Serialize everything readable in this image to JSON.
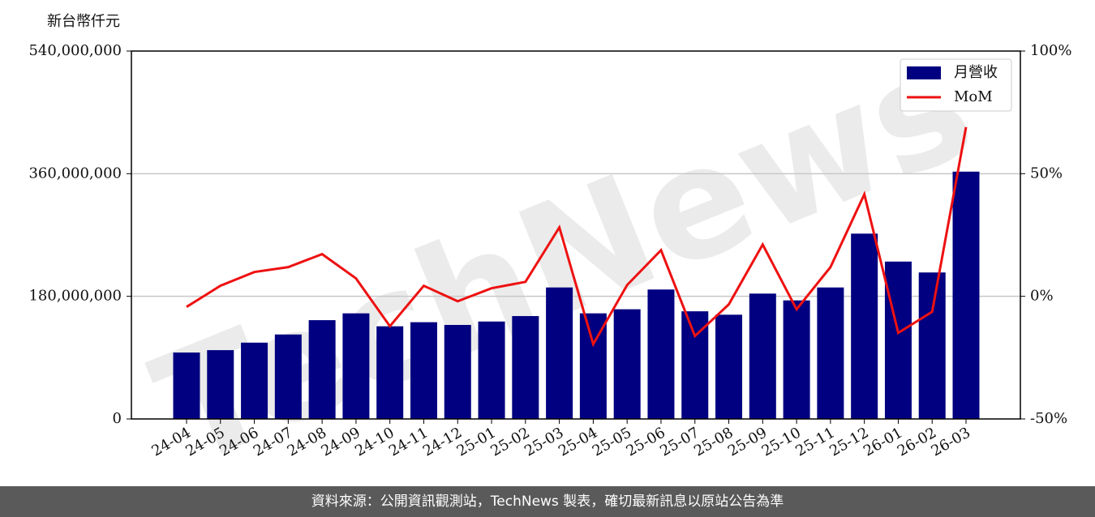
{
  "chart_data": {
    "type": "bar-line",
    "y_label": "新台幣仟元",
    "watermark": "TechNews",
    "categories": [
      "24-04",
      "24-05",
      "24-06",
      "24-07",
      "24-08",
      "24-09",
      "24-10",
      "24-11",
      "24-12",
      "25-01",
      "25-02",
      "25-03",
      "25-04",
      "25-05",
      "25-06",
      "25-07",
      "25-08",
      "25-09",
      "25-10",
      "25-11",
      "25-12",
      "26-01",
      "26-02",
      "26-03"
    ],
    "series": [
      {
        "name": "月營收",
        "type": "bar",
        "color": "#000080",
        "values": [
          97500000,
          101000000,
          112000000,
          124000000,
          145000000,
          155000000,
          136000000,
          142000000,
          138000000,
          143000000,
          151000000,
          193000000,
          155000000,
          161000000,
          190000000,
          158000000,
          153000000,
          184000000,
          174000000,
          193000000,
          272000000,
          231000000,
          215000000,
          363000000
        ]
      },
      {
        "name": "MoM",
        "type": "line",
        "axis": "y2",
        "color": "#ee1111",
        "values": [
          -4.3,
          4.3,
          9.9,
          11.9,
          17.2,
          7.3,
          -12.2,
          4.3,
          -2.0,
          3.3,
          5.9,
          28.1,
          -19.5,
          4.6,
          18.8,
          -16.2,
          -3.3,
          21.1,
          -5.3,
          11.9,
          41.6,
          -14.9,
          -6.3,
          69.0
        ]
      }
    ],
    "ylim": [
      0,
      540000000
    ],
    "yticks": [
      {
        "value": 0,
        "label": "0"
      },
      {
        "value": 180000000,
        "label": "180,000,000"
      },
      {
        "value": 360000000,
        "label": "360,000,000"
      },
      {
        "value": 540000000,
        "label": "540,000,000"
      }
    ],
    "y2lim": [
      -50,
      100
    ],
    "y2ticks": [
      {
        "value": -50,
        "label": "-50%"
      },
      {
        "value": 0,
        "label": "0%"
      },
      {
        "value": 50,
        "label": "50%"
      },
      {
        "value": 100,
        "label": "100%"
      }
    ],
    "grid": true,
    "legend": "upper right",
    "footer": "資料來源：公開資訊觀測站，TechNews 製表，確切最新訊息以原站公告為準"
  }
}
